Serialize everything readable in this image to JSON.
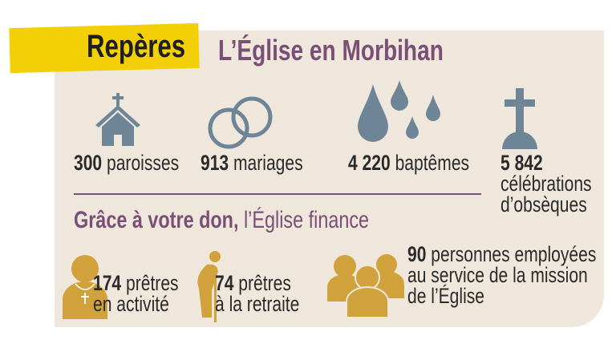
{
  "header": {
    "tag": "Repères",
    "title": "L’Église en Morbihan"
  },
  "stats": [
    {
      "value": "300",
      "label": "paroisses",
      "icon": "church-icon"
    },
    {
      "value": "913",
      "label": "mariages",
      "icon": "rings-icon"
    },
    {
      "value": "4 220",
      "label": "baptêmes",
      "icon": "water-drops-icon"
    },
    {
      "value": "5 842",
      "label": "célébrations",
      "label2": "d’obsèques",
      "icon": "grave-cross-icon"
    }
  ],
  "finance": {
    "lead": "Grâce à votre don,",
    "rest": " l’Église finance"
  },
  "funded": [
    {
      "value": "174",
      "label": "prêtres",
      "label2": "en activité",
      "icon": "priest-icon"
    },
    {
      "value": "74",
      "label": "prêtres",
      "label2": "à la retraite",
      "icon": "elderly-person-icon"
    },
    {
      "value": "90",
      "label": "personnes employées",
      "label2": "au service de la mission",
      "label3": "de l’Église",
      "icon": "group-people-icon"
    }
  ],
  "colors": {
    "panel": "#efe7dc",
    "tag": "#f2cf06",
    "accent": "#7a4f75",
    "icon_blue": "#6d8597",
    "icon_gold": "#d1a23c"
  }
}
